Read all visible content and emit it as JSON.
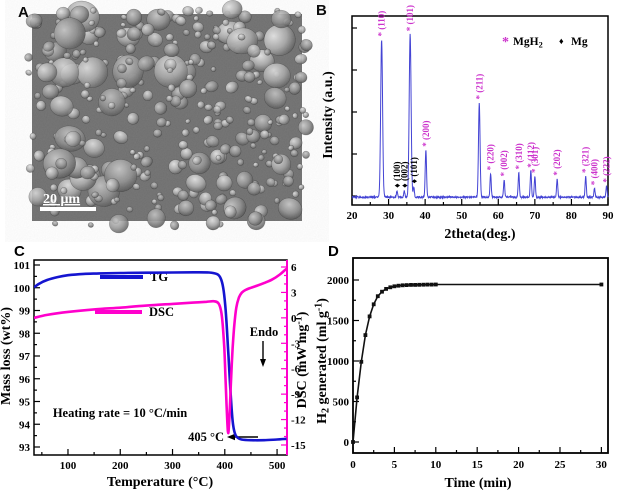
{
  "panels": {
    "a": {
      "label": "A"
    },
    "b": {
      "label": "B"
    },
    "c": {
      "label": "C"
    },
    "d": {
      "label": "D"
    }
  },
  "panel_a": {
    "description": "SEM micrograph of spherical Mg/MgH2 powder particles",
    "scale_bar_label": "20 μm"
  },
  "chart_data": [
    {
      "panel": "B",
      "type": "line",
      "subtype": "xrd-pattern",
      "xlabel": "2theta(deg.)",
      "ylabel": "Intensity (a.u.)",
      "xlim": [
        20,
        90
      ],
      "x_ticks": [
        20,
        30,
        40,
        50,
        60,
        70,
        80,
        90
      ],
      "x_minor_step": 5,
      "grid": false,
      "curve_color": "#4444d4",
      "label_color": "#cc33cc",
      "legend_position": "top-right-inside",
      "legend": [
        {
          "symbol": "*",
          "color": "#cc33cc",
          "parts": [
            {
              "t": "MgH"
            },
            {
              "t": "2",
              "sub": true
            }
          ]
        },
        {
          "symbol": "♦",
          "color": "#000000",
          "parts": [
            {
              "t": "Mg"
            }
          ]
        }
      ],
      "peaks": [
        {
          "two_theta": 28.1,
          "rel_intensity": 0.9,
          "phase": "MgH2",
          "hkl": "(110)"
        },
        {
          "two_theta": 32.3,
          "rel_intensity": 0.035,
          "phase": "Mg",
          "hkl": "(100)"
        },
        {
          "two_theta": 34.3,
          "rel_intensity": 0.035,
          "phase": "Mg",
          "hkl": "(002)"
        },
        {
          "two_theta": 35.9,
          "rel_intensity": 0.93,
          "phase": "MgH2",
          "hkl": "(101)"
        },
        {
          "two_theta": 36.9,
          "rel_intensity": 0.06,
          "phase": "Mg",
          "hkl": "(101)"
        },
        {
          "two_theta": 40.2,
          "rel_intensity": 0.27,
          "phase": "MgH2",
          "hkl": "(200)"
        },
        {
          "two_theta": 54.8,
          "rel_intensity": 0.54,
          "phase": "MgH2",
          "hkl": "(211)"
        },
        {
          "two_theta": 57.9,
          "rel_intensity": 0.135,
          "phase": "MgH2",
          "hkl": "(220)"
        },
        {
          "two_theta": 61.6,
          "rel_intensity": 0.1,
          "phase": "MgH2",
          "hkl": "(002)"
        },
        {
          "two_theta": 65.6,
          "rel_intensity": 0.14,
          "phase": "MgH2",
          "hkl": "(310)"
        },
        {
          "two_theta": 68.9,
          "rel_intensity": 0.15,
          "phase": "MgH2",
          "hkl": "(112)"
        },
        {
          "two_theta": 70.0,
          "rel_intensity": 0.12,
          "phase": "MgH2",
          "hkl": "(301)"
        },
        {
          "two_theta": 76.1,
          "rel_intensity": 0.105,
          "phase": "MgH2",
          "hkl": "(202)"
        },
        {
          "two_theta": 83.9,
          "rel_intensity": 0.12,
          "phase": "MgH2",
          "hkl": "(321)"
        },
        {
          "two_theta": 86.3,
          "rel_intensity": 0.05,
          "phase": "MgH2",
          "hkl": "(400)"
        },
        {
          "two_theta": 89.6,
          "rel_intensity": 0.065,
          "phase": "MgH2",
          "hkl": "(222)"
        }
      ]
    },
    {
      "panel": "C",
      "type": "line",
      "subtype": "tg-dsc",
      "xlabel": "Temperature (°C)",
      "ylabel_left": "Mass loss (wt%)",
      "ylabel_right_parts": [
        {
          "t": "DSC (mW mg"
        },
        {
          "t": "-1",
          "sup": true
        },
        {
          "t": ")"
        }
      ],
      "xlim": [
        35,
        519
      ],
      "x_ticks": [
        100,
        200,
        300,
        400,
        500
      ],
      "x_minor_step": 50,
      "ylim_left": [
        92.65,
        101.2
      ],
      "y_ticks_left": [
        93,
        94,
        95,
        96,
        97,
        98,
        99,
        100,
        101
      ],
      "ylim_right": [
        -15,
        6
      ],
      "y_ticks_right": [
        6,
        3,
        0,
        -3,
        -6,
        -9,
        -12,
        -15
      ],
      "right_axis_color": "#ff00cc",
      "series": [
        {
          "name": "TG",
          "color": "#1515d0",
          "axis": "left",
          "points": [
            [
              35,
              100.02
            ],
            [
              45,
              100.18
            ],
            [
              60,
              100.34
            ],
            [
              80,
              100.47
            ],
            [
              100,
              100.55
            ],
            [
              130,
              100.61
            ],
            [
              160,
              100.63
            ],
            [
              200,
              100.65
            ],
            [
              250,
              100.66
            ],
            [
              300,
              100.67
            ],
            [
              340,
              100.68
            ],
            [
              370,
              100.67
            ],
            [
              385,
              100.6
            ],
            [
              392,
              100.42
            ],
            [
              397,
              100.0
            ],
            [
              401,
              99.2
            ],
            [
              404,
              98.2
            ],
            [
              407,
              97.0
            ],
            [
              410,
              95.8
            ],
            [
              413,
              94.7
            ],
            [
              416,
              93.95
            ],
            [
              420,
              93.55
            ],
            [
              425,
              93.4
            ],
            [
              432,
              93.33
            ],
            [
              450,
              93.3
            ],
            [
              475,
              93.3
            ],
            [
              500,
              93.33
            ],
            [
              518,
              93.36
            ]
          ]
        },
        {
          "name": "DSC",
          "color": "#ff00cc",
          "axis": "right",
          "points": [
            [
              35,
              0.0
            ],
            [
              60,
              0.35
            ],
            [
              100,
              0.7
            ],
            [
              150,
              1.0
            ],
            [
              200,
              1.2
            ],
            [
              250,
              1.45
            ],
            [
              300,
              1.65
            ],
            [
              340,
              1.8
            ],
            [
              365,
              1.9
            ],
            [
              380,
              1.95
            ],
            [
              388,
              1.7
            ],
            [
              393,
              0.8
            ],
            [
              396,
              -0.8
            ],
            [
              399,
              -3.5
            ],
            [
              401,
              -6.5
            ],
            [
              403,
              -9.8
            ],
            [
              405,
              -12.5
            ],
            [
              406.5,
              -13.6
            ],
            [
              408,
              -12.6
            ],
            [
              410,
              -10.2
            ],
            [
              412,
              -7.2
            ],
            [
              415,
              -3.6
            ],
            [
              418,
              -1.0
            ],
            [
              422,
              1.2
            ],
            [
              427,
              2.4
            ],
            [
              433,
              3.0
            ],
            [
              440,
              3.3
            ],
            [
              450,
              3.55
            ],
            [
              462,
              3.8
            ],
            [
              475,
              4.1
            ],
            [
              490,
              4.5
            ],
            [
              505,
              5.1
            ],
            [
              518,
              5.8
            ]
          ]
        }
      ],
      "annotations": {
        "heating_rate": "Heating rate = 10 °C/min",
        "peak_temp": "405 °C",
        "endo": "Endo"
      }
    },
    {
      "panel": "D",
      "type": "scatter",
      "subtype": "line-with-square-markers",
      "xlabel": "Time (min)",
      "ylabel_parts": [
        {
          "t": "H"
        },
        {
          "t": "2",
          "sub": true
        },
        {
          "t": " generated (ml g"
        },
        {
          "t": "-1",
          "sup": true
        },
        {
          "t": ")"
        }
      ],
      "xlim": [
        0,
        30.8
      ],
      "x_ticks": [
        0,
        5,
        10,
        15,
        20,
        25,
        30
      ],
      "x_minor_step": 2.5,
      "ylim": [
        -250,
        2300
      ],
      "y_ticks": [
        0,
        500,
        1000,
        1500,
        2000
      ],
      "y_minor_step": 250,
      "color": "#111111",
      "x": [
        0,
        0.5,
        1,
        1.5,
        2,
        2.5,
        3,
        3.5,
        4,
        4.5,
        5,
        5.5,
        6,
        6.5,
        7,
        7.5,
        8,
        8.5,
        9,
        9.5,
        10,
        30
      ],
      "y": [
        0,
        550,
        990,
        1320,
        1550,
        1700,
        1800,
        1855,
        1890,
        1910,
        1922,
        1930,
        1934,
        1937,
        1939,
        1940,
        1941,
        1942,
        1943,
        1943,
        1944,
        1944
      ]
    }
  ]
}
